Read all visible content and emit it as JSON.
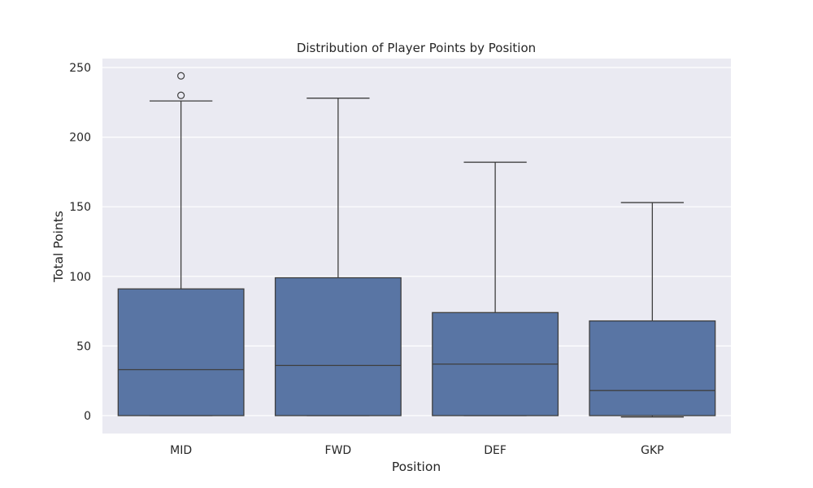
{
  "chart_data": {
    "type": "box",
    "title": "Distribution of Player Points by Position",
    "xlabel": "Position",
    "ylabel": "Total Points",
    "ylim": [
      -12,
      255
    ],
    "yticks": [
      0,
      50,
      100,
      150,
      200,
      250
    ],
    "ytick_labels": [
      "0",
      "50",
      "100",
      "150",
      "200",
      "250"
    ],
    "grid": true,
    "categories": [
      "MID",
      "FWD",
      "DEF",
      "GKP"
    ],
    "boxes": [
      {
        "category": "MID",
        "min": 0,
        "q1": 0,
        "median": 33,
        "q3": 91,
        "max": 226,
        "outliers": [
          230,
          244
        ]
      },
      {
        "category": "FWD",
        "min": 0,
        "q1": 0,
        "median": 36,
        "q3": 99,
        "max": 228,
        "outliers": []
      },
      {
        "category": "DEF",
        "min": 0,
        "q1": 0,
        "median": 37,
        "q3": 74,
        "max": 182,
        "outliers": []
      },
      {
        "category": "GKP",
        "min": -1,
        "q1": 0,
        "median": 18,
        "q3": 68,
        "max": 153,
        "outliers": []
      }
    ],
    "colors": {
      "box_fill": "#5975a4",
      "line": "#3f3f3f",
      "plot_background": "#eaeaf2",
      "grid": "#ffffff",
      "text": "#262626"
    }
  }
}
